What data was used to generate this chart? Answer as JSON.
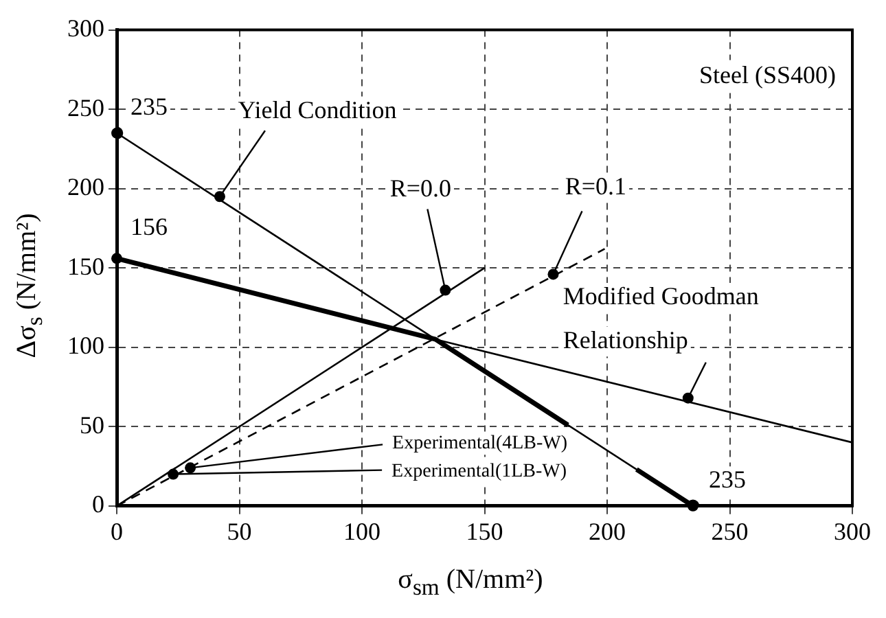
{
  "chart_data": {
    "type": "line",
    "xlabel": "σ$_{sm}$ (N/mm²)",
    "ylabel": "Δσ$_{s}$ (N/mm²)",
    "xlim": [
      0,
      300
    ],
    "ylim": [
      0,
      300
    ],
    "xticks": [
      0,
      50,
      100,
      150,
      200,
      250,
      300
    ],
    "yticks": [
      0,
      50,
      100,
      150,
      200,
      250,
      300
    ],
    "grid": true,
    "legend": false,
    "series": [
      {
        "color": "#000000",
        "line_style": "solid",
        "marker": "circle",
        "x": [
          0,
          235
        ],
        "values": [
          235,
          0
        ]
      },
      {
        "color": "#000000",
        "line_style": "solid",
        "x": [
          0,
          130,
          184,
          198,
          212,
          235
        ],
        "values": [
          156,
          105,
          51,
          null,
          23,
          0
        ]
      },
      {
        "color": "#000000",
        "line_style": "solid",
        "x": [
          130,
          300
        ],
        "values": [
          105,
          40
        ]
      },
      {
        "color": "#000000",
        "line_style": "solid",
        "x": [
          0,
          150
        ],
        "values": [
          0,
          150
        ]
      },
      {
        "color": "#000000",
        "line_style": "dashed",
        "x": [
          0,
          199
        ],
        "values": [
          0,
          162
        ]
      }
    ],
    "annotations": [
      "Steel (SS400)",
      {
        "text": "235",
        "x": 0,
        "y": 235
      },
      {
        "text": "Yield Condition",
        "x": 42,
        "y": 195
      },
      {
        "text": "156",
        "x": 0,
        "y": 156
      },
      {
        "text": "R=0.0",
        "x": 134,
        "y": 136
      },
      {
        "text": "R=0.1",
        "x": 178,
        "y": 146
      },
      {
        "text": "Modified Goodman\nRelationship",
        "x": 233,
        "y": 68
      },
      {
        "text": "Experimental(4LB-W)",
        "x": 30,
        "y": 24
      },
      {
        "text": "Experimental(1LB-W)",
        "x": 23,
        "y": 20
      },
      {
        "text": "235",
        "x": 235,
        "y": 0
      }
    ]
  }
}
